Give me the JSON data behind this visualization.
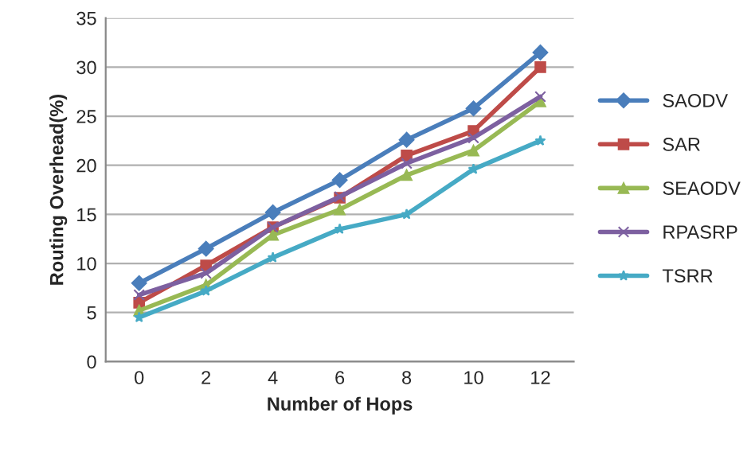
{
  "chart_data": {
    "type": "line",
    "xlabel": "Number of Hops",
    "ylabel": "Routing Overhead(%)",
    "categories": [
      "0",
      "2",
      "4",
      "6",
      "8",
      "10",
      "12"
    ],
    "ylim": [
      0,
      35
    ],
    "yticks": [
      0,
      5,
      10,
      15,
      20,
      25,
      30,
      35
    ],
    "grid": "y",
    "legend": "right",
    "series": [
      {
        "name": "SAODV",
        "color": "#4a7ebb",
        "marker": "diamond",
        "values": [
          8,
          11.5,
          15.2,
          18.5,
          22.6,
          25.8,
          31.5
        ]
      },
      {
        "name": "SAR",
        "color": "#be4b48",
        "marker": "square",
        "values": [
          6,
          9.8,
          13.7,
          16.7,
          21,
          23.5,
          30
        ]
      },
      {
        "name": "SEAODV",
        "color": "#98b954",
        "marker": "triangle",
        "values": [
          5.2,
          7.8,
          12.9,
          15.5,
          19,
          21.5,
          26.5
        ]
      },
      {
        "name": "RPASRP",
        "color": "#7d60a0",
        "marker": "cross",
        "values": [
          6.8,
          9,
          13.7,
          16.8,
          20.2,
          22.8,
          27
        ]
      },
      {
        "name": "TSRR",
        "color": "#46aac5",
        "marker": "star",
        "values": [
          4.5,
          7.2,
          10.6,
          13.5,
          15,
          19.6,
          22.5
        ]
      }
    ]
  }
}
